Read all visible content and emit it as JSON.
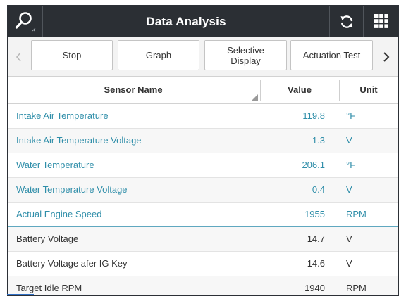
{
  "header": {
    "title": "Data Analysis",
    "search_icon": "search-icon",
    "refresh_icon": "refresh-icon",
    "grid_icon": "grid-menu-icon"
  },
  "toolbar": {
    "buttons": [
      {
        "label": "Stop"
      },
      {
        "label": "Graph"
      },
      {
        "label": "Selective\nDisplay"
      },
      {
        "label": "Actuation Test"
      }
    ],
    "prev_icon": "chevron-left-icon",
    "next_icon": "chevron-right-icon"
  },
  "table": {
    "headers": {
      "name": "Sensor Name",
      "value": "Value",
      "unit": "Unit"
    },
    "rows": [
      {
        "name": "Intake Air Temperature",
        "value": "119.8",
        "unit": "°F",
        "active": true
      },
      {
        "name": "Intake Air Temperature Voltage",
        "value": "1.3",
        "unit": "V",
        "active": true
      },
      {
        "name": "Water Temperature",
        "value": "206.1",
        "unit": "°F",
        "active": true
      },
      {
        "name": "Water Temperature Voltage",
        "value": "0.4",
        "unit": "V",
        "active": true
      },
      {
        "name": "Actual Engine Speed",
        "value": "1955",
        "unit": "RPM",
        "active": true
      },
      {
        "name": "Battery Voltage",
        "value": "14.7",
        "unit": "V",
        "active": false
      },
      {
        "name": "Battery Voltage afer IG Key",
        "value": "14.6",
        "unit": "V",
        "active": false
      },
      {
        "name": "Target Idle RPM",
        "value": "1940",
        "unit": "RPM",
        "active": false
      }
    ]
  },
  "colors": {
    "header_bg": "#2b2f34",
    "active_text": "#2f8ea9",
    "toolbar_bg": "#f3f3f3"
  }
}
